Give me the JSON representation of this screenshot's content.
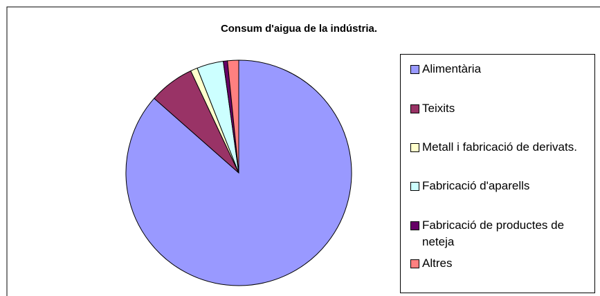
{
  "chart_data": {
    "type": "pie",
    "title": "Consum d'aigua de la indústria.",
    "categories": [
      "Alimentària",
      "Teixits",
      "Metall i fabricació de derivats.",
      "Fabricació d'aparells",
      "Fabricació de productes de neteja",
      "Altres"
    ],
    "values": [
      86.5,
      6.5,
      1,
      3.8,
      0.6,
      1.6
    ],
    "colors": [
      "#9999ff",
      "#993366",
      "#ffffcc",
      "#ccffff",
      "#660066",
      "#ff8080"
    ],
    "legend": "right"
  }
}
